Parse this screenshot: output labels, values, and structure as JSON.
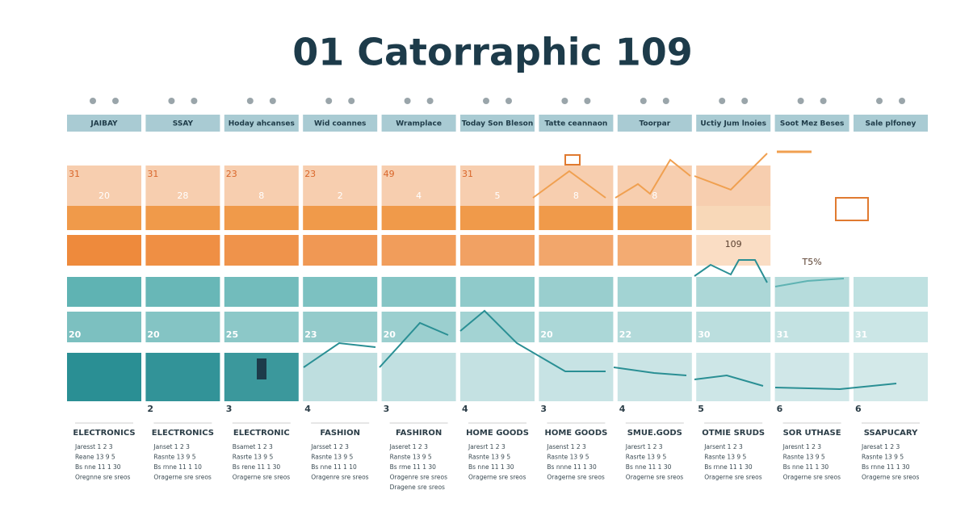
{
  "title": "01 Catorraphic 109",
  "columns": [
    {
      "header": "JAIBAY",
      "top": 31,
      "mid": 20,
      "teal": 20,
      "category": "ELECTRONICS",
      "rows": [
        "Jaresst 1 2 3",
        "Reane 13 9 5",
        "Bs nne 11 1 30",
        "Oregnne sre sreos"
      ]
    },
    {
      "header": "SSAY",
      "top": 31,
      "mid": 28,
      "teal": 20,
      "bottom": 2,
      "category": "ELECTRONICS",
      "rows": [
        "Janset 1 2 3",
        "Rasnte 13 9 5",
        "Bs rnne 11 1 10",
        "Oragerne sre sreos"
      ]
    },
    {
      "header": "Hoday ahcanses",
      "top": 23,
      "mid": 8,
      "teal": 25,
      "bottom": 3,
      "category": "ELECTRONIC",
      "rows": [
        "Bsamet 1 2 3",
        "Rasrte 13 9 5",
        "Bs rene 11 1 30",
        "Oragerne sre sreos"
      ]
    },
    {
      "header": "Wid coannes",
      "top": 23,
      "mid": 2,
      "teal": 23,
      "bottom": 4,
      "category": "FASHION",
      "rows": [
        "Jarsset 1 2 3",
        "Rasnte 13 9 5",
        "Bs nne 11 1 10",
        "Oragenre sre sreos"
      ]
    },
    {
      "header": "Wramplace",
      "top": 49,
      "mid": 4,
      "teal": 20,
      "bottom": 3,
      "category": "FASHIRON",
      "rows": [
        "Jaseret 1 2 3",
        "Ranste 13 9 5",
        "Bs rme 11 1 30",
        "Oragenre sre sreos",
        "Dragene sre sreos"
      ]
    },
    {
      "header": "Today Son Bleson",
      "top": 31,
      "mid": 5,
      "bottom": 4,
      "category": "HOME GOODS",
      "rows": [
        "Jaresrt 1 2 3",
        "Rasnte 13 9 5",
        "Bs nne 11 1 30",
        "Oragerne sre sreos"
      ]
    },
    {
      "header": "Tatte ceannaon",
      "mid": 8,
      "teal": 20,
      "bottom": 3,
      "category": "HOME GOODS",
      "rows": [
        "Jasenst 1 2 3",
        "Rasnte 13 9 5",
        "Bs nnne 11 1 30",
        "Oragerne sre sreos"
      ]
    },
    {
      "header": "Toorpar",
      "mid": 8,
      "teal": 22,
      "bottom": 4,
      "category": "SMUE.GODS",
      "rows": [
        "Jaresrt 1 2 3",
        "Rasrte 13 9 5",
        "Bs nne 11 1 30",
        "Oragerne sre sreos"
      ]
    },
    {
      "header": "Uctiy Jum lnoies",
      "mid": 109,
      "teal": 30,
      "bottom": 5,
      "category": "OTMIE SRUDS",
      "rows": [
        "Jarsent 1 2 3",
        "Rasnte 13 9 5",
        "Bs rnne 11 1 30",
        "Oragerne sre sreos"
      ]
    },
    {
      "header": "Soot Mez Beses",
      "mid": "T5%",
      "teal": 31,
      "bottom": 6,
      "category": "SOR UTHASE",
      "rows": [
        "Jaresnt 1 2 3",
        "Rasnte 13 9 5",
        "Bs nne 11 1 30",
        "Oragerne sre sreos"
      ]
    },
    {
      "header": "Sale plfoney",
      "teal": 31,
      "bottom": 6,
      "category": "SSAPUCARY",
      "rows": [
        "Jaresat 1 2 3",
        "Rasnte 13 9 5",
        "Bs rnne 11 1 30",
        "Oragerne sre sreos"
      ]
    }
  ]
}
